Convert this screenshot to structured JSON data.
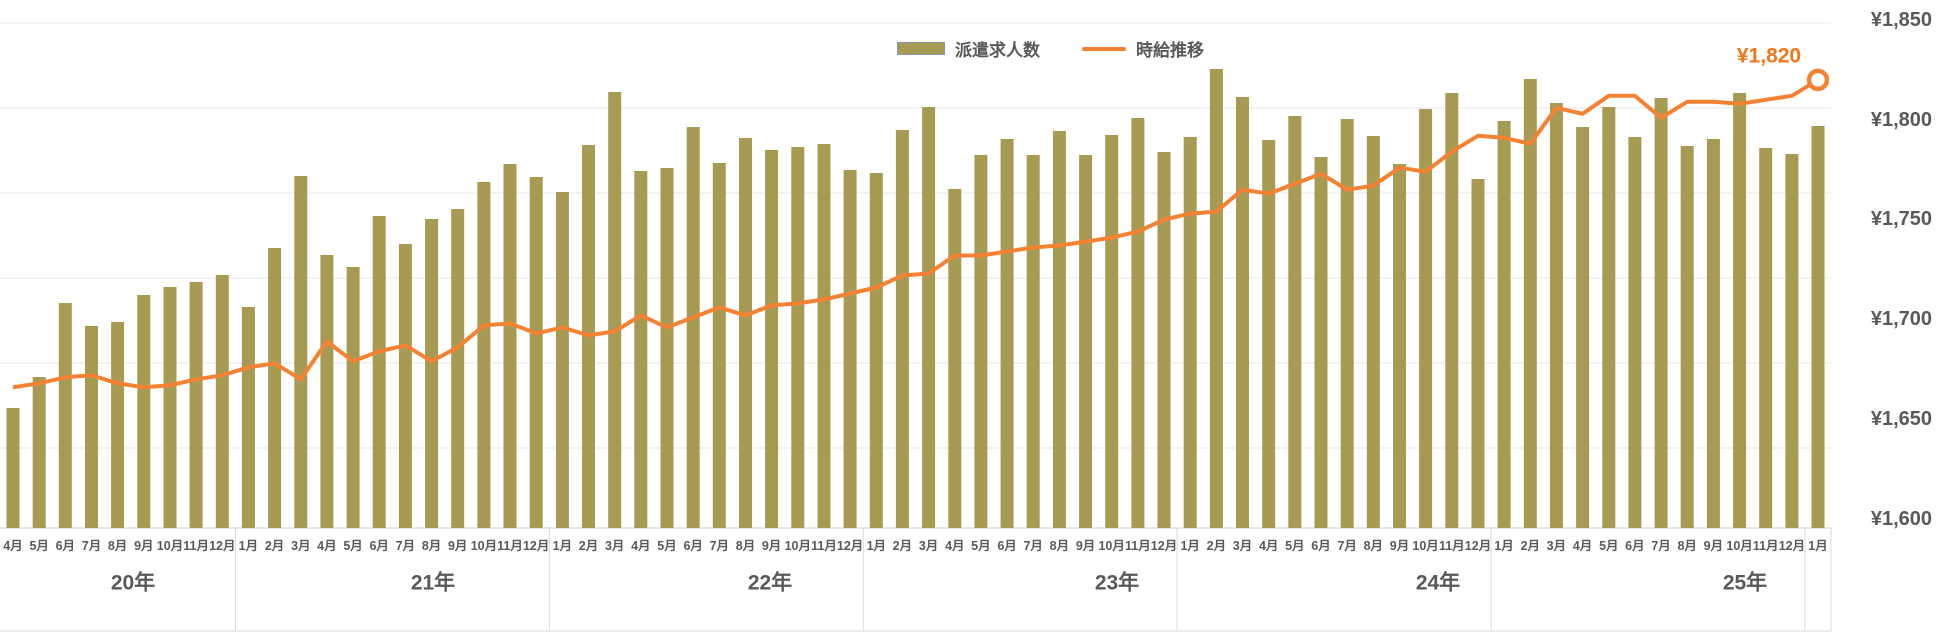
{
  "legend": {
    "bar_label": "派遣求人数",
    "line_label": "時給推移",
    "bar_color": "#A79A53",
    "bar_border_color": "#8096B3",
    "line_color": "#F58232"
  },
  "annotation": {
    "text": "¥1,820",
    "color": "#F5761A"
  },
  "y_axis": {
    "labels": [
      "¥1,850",
      "¥1,800",
      "¥1,750",
      "¥1,700",
      "¥1,650",
      "¥1,600"
    ],
    "min": 1600,
    "max": 1850,
    "unit": "¥",
    "side": "right",
    "text_color": "#595959"
  },
  "year_band": {
    "sections": [
      {
        "label": "20年",
        "months": 9
      },
      {
        "label": "21年",
        "months": 12
      },
      {
        "label": "22年",
        "months": 12
      },
      {
        "label": "23年",
        "months": 12
      },
      {
        "label": "24年",
        "months": 12
      },
      {
        "label": "25年",
        "months": 12
      },
      {
        "label": "",
        "months": 1
      }
    ]
  },
  "chart_data": {
    "type": "combo",
    "title": "",
    "xlabel": "",
    "ylabel": "",
    "x": [
      "4月",
      "5月",
      "6月",
      "7月",
      "8月",
      "9月",
      "10月",
      "11月",
      "12月",
      "1月",
      "2月",
      "3月",
      "4月",
      "5月",
      "6月",
      "7月",
      "8月",
      "9月",
      "10月",
      "11月",
      "12月",
      "1月",
      "2月",
      "3月",
      "4月",
      "5月",
      "6月",
      "7月",
      "8月",
      "9月",
      "10月",
      "11月",
      "12月",
      "1月",
      "2月",
      "3月",
      "4月",
      "5月",
      "6月",
      "7月",
      "8月",
      "9月",
      "10月",
      "11月",
      "12月",
      "1月",
      "2月",
      "3月",
      "4月",
      "5月",
      "6月",
      "7月",
      "8月",
      "9月",
      "10月",
      "11月",
      "12月",
      "1月",
      "2月",
      "3月",
      "4月",
      "5月",
      "6月",
      "7月",
      "8月",
      "9月",
      "10月",
      "11月",
      "12月",
      "1月"
    ],
    "series": [
      {
        "name": "派遣求人数",
        "type": "bar",
        "axis": "hidden (no value labels shown)",
        "unit": "relative height",
        "values": [
          120,
          151,
          225,
          202,
          206,
          233,
          241,
          246,
          253,
          221,
          280,
          352,
          273,
          261,
          312,
          284,
          309,
          319,
          346,
          364,
          351,
          336,
          383,
          436,
          357,
          360,
          401,
          365,
          390,
          378,
          381,
          384,
          358,
          355,
          398,
          421,
          339,
          373,
          389,
          373,
          397,
          373,
          393,
          410,
          376,
          391,
          459,
          431,
          388,
          412,
          371,
          409,
          392,
          364,
          419,
          435,
          349,
          407,
          449,
          425,
          401,
          421,
          391,
          430,
          382,
          389,
          435,
          380,
          374,
          402
        ]
      },
      {
        "name": "時給推移",
        "type": "line",
        "axis": "right",
        "unit": "¥",
        "ylim": [
          1600,
          1850
        ],
        "values": [
          1666,
          1668,
          1671,
          1672,
          1668,
          1666,
          1667,
          1670,
          1672,
          1676,
          1678,
          1670,
          1689,
          1679,
          1684,
          1687,
          1679,
          1686,
          1697,
          1698,
          1693,
          1696,
          1692,
          1694,
          1702,
          1696,
          1701,
          1706,
          1702,
          1707,
          1708,
          1710,
          1713,
          1716,
          1722,
          1723,
          1732,
          1732,
          1734,
          1736,
          1737,
          1739,
          1741,
          1744,
          1750,
          1753,
          1754,
          1765,
          1763,
          1768,
          1773,
          1765,
          1767,
          1776,
          1774,
          1784,
          1792,
          1791,
          1788,
          1806,
          1803,
          1812,
          1812,
          1801,
          1809,
          1809,
          1808,
          1810,
          1812,
          1820
        ],
        "last_value_annotation": "¥1,820"
      }
    ],
    "legend_position": "top-center",
    "grid": true
  },
  "colors": {
    "grid": "#E7E7E7",
    "axis_line": "#CFCFCF",
    "band_border": "#D9D9D9",
    "text": "#595959",
    "background": "#FFFFFF"
  }
}
